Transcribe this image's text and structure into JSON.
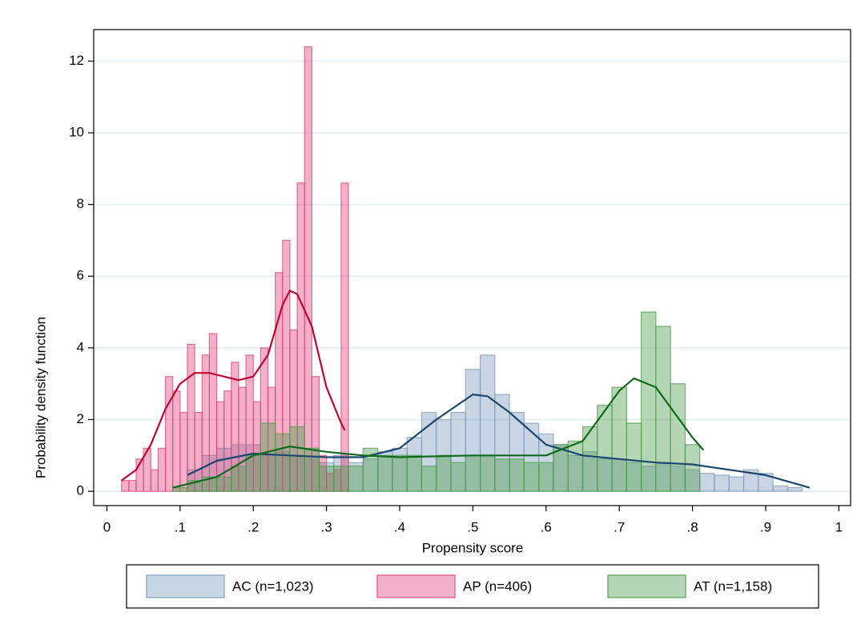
{
  "chart_data": {
    "type": "histogram",
    "xlabel": "Propensity score",
    "ylabel": "Probability density function",
    "xlim": [
      -0.018,
      1.016
    ],
    "ylim": [
      -0.4,
      12.88
    ],
    "xticks": [
      0,
      {
        "value": 0.1,
        "label": ".1"
      },
      {
        "value": 0.2,
        "label": ".2"
      },
      {
        "value": 0.3,
        "label": ".3"
      },
      {
        "value": 0.4,
        "label": ".4"
      },
      {
        "value": 0.5,
        "label": ".5"
      },
      {
        "value": 0.6,
        "label": ".6"
      },
      {
        "value": 0.7,
        "label": ".7"
      },
      {
        "value": 0.8,
        "label": ".8"
      },
      {
        "value": 0.9,
        "label": ".9"
      },
      1
    ],
    "yticks": [
      0,
      2,
      4,
      6,
      8,
      10,
      12
    ],
    "grid": true,
    "legend_position": "bottom",
    "series": [
      {
        "name": "AC (n=1,023)",
        "color": "#7f9bbd",
        "line_color": "#1a476f",
        "bins": [
          0.11,
          0.13,
          0.15,
          0.17,
          0.19,
          0.21,
          0.23,
          0.25,
          0.27,
          0.29,
          0.31,
          0.33,
          0.35,
          0.37,
          0.39,
          0.41,
          0.43,
          0.45,
          0.47,
          0.49,
          0.51,
          0.53,
          0.55,
          0.57,
          0.59,
          0.61,
          0.63,
          0.65,
          0.67,
          0.69,
          0.71,
          0.73,
          0.75,
          0.77,
          0.79,
          0.81,
          0.83,
          0.85,
          0.87,
          0.89,
          0.91,
          0.93,
          0.95
        ],
        "values": [
          0.6,
          1.0,
          1.2,
          1.3,
          1.3,
          1.0,
          1.1,
          1.0,
          0.9,
          0.8,
          1.0,
          0.8,
          0.9,
          1.1,
          1.2,
          1.5,
          2.2,
          2.0,
          2.2,
          3.4,
          3.8,
          2.7,
          2.2,
          1.9,
          1.6,
          1.3,
          1.0,
          1.1,
          0.9,
          0.9,
          0.8,
          0.7,
          0.8,
          0.7,
          0.6,
          0.5,
          0.45,
          0.4,
          0.6,
          0.5,
          0.15,
          0.1
        ],
        "density": {
          "x": [
            0.11,
            0.15,
            0.2,
            0.25,
            0.3,
            0.35,
            0.4,
            0.45,
            0.5,
            0.52,
            0.55,
            0.6,
            0.65,
            0.7,
            0.75,
            0.8,
            0.85,
            0.9,
            0.96
          ],
          "y": [
            0.45,
            0.85,
            1.05,
            1.0,
            0.95,
            0.95,
            1.2,
            2.0,
            2.7,
            2.65,
            2.2,
            1.3,
            1.0,
            0.9,
            0.8,
            0.75,
            0.6,
            0.45,
            0.1
          ]
        }
      },
      {
        "name": "AP (n=406)",
        "color": "#e0457b",
        "line_color": "#c10534",
        "bins": [
          0.02,
          0.03,
          0.04,
          0.05,
          0.06,
          0.07,
          0.08,
          0.09,
          0.1,
          0.11,
          0.12,
          0.13,
          0.14,
          0.15,
          0.16,
          0.17,
          0.18,
          0.19,
          0.2,
          0.21,
          0.22,
          0.23,
          0.24,
          0.25,
          0.26,
          0.27,
          0.28,
          0.29,
          0.3,
          0.31,
          0.32,
          0.33
        ],
        "values": [
          0.3,
          0.3,
          0.9,
          1.2,
          0.6,
          1.2,
          3.2,
          2.8,
          2.2,
          4.1,
          2.2,
          3.8,
          4.4,
          2.5,
          2.8,
          3.6,
          2.9,
          3.8,
          2.5,
          4.0,
          2.9,
          6.1,
          7.0,
          4.5,
          8.6,
          12.4,
          3.2,
          1.0,
          0.5,
          0.6,
          8.6
        ],
        "density": {
          "x": [
            0.02,
            0.04,
            0.06,
            0.08,
            0.1,
            0.12,
            0.14,
            0.16,
            0.18,
            0.2,
            0.22,
            0.24,
            0.25,
            0.26,
            0.28,
            0.3,
            0.32,
            0.325
          ],
          "y": [
            0.3,
            0.6,
            1.3,
            2.3,
            3.0,
            3.3,
            3.3,
            3.2,
            3.1,
            3.2,
            3.8,
            5.2,
            5.6,
            5.5,
            4.6,
            2.9,
            1.9,
            1.7
          ]
        }
      },
      {
        "name": "AT (n=1,158)",
        "color": "#4d9e4d",
        "line_color": "#0d6b1a",
        "bins": [
          0.09,
          0.11,
          0.13,
          0.15,
          0.17,
          0.19,
          0.21,
          0.23,
          0.25,
          0.27,
          0.29,
          0.31,
          0.33,
          0.35,
          0.37,
          0.39,
          0.41,
          0.43,
          0.45,
          0.47,
          0.49,
          0.51,
          0.53,
          0.55,
          0.57,
          0.59,
          0.61,
          0.63,
          0.65,
          0.67,
          0.69,
          0.71,
          0.73,
          0.75,
          0.77,
          0.79,
          0.81
        ],
        "values": [
          0.1,
          0.3,
          0.4,
          0.4,
          0.7,
          1.0,
          1.9,
          1.6,
          1.8,
          1.2,
          0.7,
          0.7,
          0.7,
          1.2,
          1.0,
          1.0,
          1.0,
          0.7,
          1.0,
          0.8,
          1.0,
          1.0,
          0.9,
          0.9,
          0.8,
          0.8,
          1.3,
          1.4,
          1.8,
          2.4,
          2.9,
          1.9,
          5.0,
          4.6,
          3.0,
          1.3
        ],
        "density": {
          "x": [
            0.09,
            0.15,
            0.2,
            0.25,
            0.3,
            0.35,
            0.4,
            0.5,
            0.6,
            0.65,
            0.7,
            0.72,
            0.75,
            0.8,
            0.815
          ],
          "y": [
            0.1,
            0.4,
            1.0,
            1.25,
            1.1,
            1.0,
            0.95,
            1.0,
            1.0,
            1.4,
            2.8,
            3.15,
            2.9,
            1.5,
            1.15
          ]
        }
      }
    ]
  }
}
